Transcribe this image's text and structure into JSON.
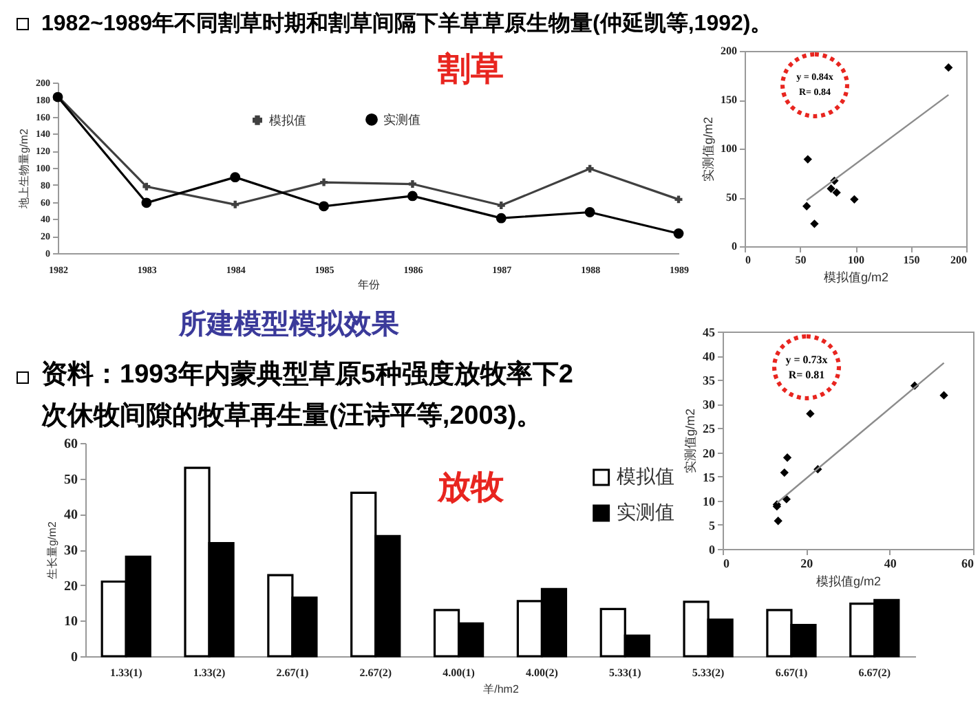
{
  "chart_data": [
    {
      "type": "line",
      "title": "1982~1989年不同割草时期和割草间隔下羊草草原生物量(仲延凯等,1992)。",
      "xlabel": "年份",
      "ylabel": "地上生物量g/m2",
      "categories": [
        "1982",
        "1983",
        "1984",
        "1985",
        "1986",
        "1987",
        "1988",
        "1989"
      ],
      "series": [
        {
          "name": "模拟值",
          "color": "#404040",
          "marker": "cross",
          "values": [
            184,
            78,
            57,
            83,
            81,
            56,
            99,
            63
          ]
        },
        {
          "name": "实测值",
          "color": "#000000",
          "marker": "circle",
          "values": [
            183,
            59,
            89,
            55,
            67,
            41,
            48,
            23
          ]
        }
      ],
      "ylim": [
        0,
        200
      ],
      "yticks": [
        0,
        20,
        40,
        60,
        80,
        100,
        120,
        140,
        160,
        180,
        200
      ],
      "grid": false,
      "legend": "top",
      "annotations": [
        "割草",
        "所建模型模拟效果"
      ]
    },
    {
      "type": "scatter",
      "xlabel": "模拟值g/m2",
      "ylabel": "实测值g/m2",
      "x": [
        184,
        78,
        57,
        83,
        81,
        56,
        99,
        63
      ],
      "series": [
        {
          "type": "scatter",
          "color": "#000000",
          "marker": "diamond",
          "values": [
            183,
            59,
            89,
            55,
            67,
            41,
            48,
            23
          ]
        },
        {
          "type": "line",
          "color": "#8c8c8c",
          "x": [
            56,
            184
          ],
          "values": [
            47,
            155
          ]
        }
      ],
      "xlim": [
        0,
        200
      ],
      "xticks": [
        0,
        50,
        100,
        150,
        200
      ],
      "ylim": [
        0,
        200
      ],
      "yticks": [
        0,
        50,
        100,
        150,
        200
      ],
      "grid": false,
      "annotations": [
        "y = 0.84x",
        "R= 0.84"
      ]
    },
    {
      "type": "scatter",
      "xlabel": "模拟值g/m2",
      "ylabel": "实测值g/m2",
      "x": [
        21,
        53,
        22.8,
        46,
        13,
        15.5,
        13.3,
        15.3,
        13,
        14.8
      ],
      "series": [
        {
          "type": "scatter",
          "color": "#000000",
          "marker": "diamond",
          "values": [
            28,
            31.8,
            16.5,
            33.8,
            9.2,
            18.9,
            5.8,
            10.3,
            8.8,
            15.8
          ]
        },
        {
          "type": "line",
          "color": "#8c8c8c",
          "x": [
            13,
            53
          ],
          "values": [
            9.5,
            38.5
          ]
        }
      ],
      "xlim": [
        0,
        60
      ],
      "xticks": [
        0,
        20,
        40,
        60
      ],
      "ylim": [
        0,
        45
      ],
      "yticks": [
        0,
        5,
        10,
        15,
        20,
        25,
        30,
        35,
        40,
        45
      ],
      "grid": false,
      "annotations": [
        "y = 0.73x",
        "R= 0.81"
      ]
    },
    {
      "type": "bar",
      "title": "资料：1993年内蒙典型草原5种强度放牧率下2次休牧间隙的牧草再生量(汪诗平等,2003)。",
      "xlabel": "羊/hm2",
      "ylabel": "生长量g/m2",
      "categories": [
        "1.33(1)",
        "1.33(2)",
        "2.67(1)",
        "2.67(2)",
        "4.00(1)",
        "4.00(2)",
        "5.33(1)",
        "5.33(2)",
        "6.67(1)",
        "6.67(2)"
      ],
      "series": [
        {
          "name": "模拟值",
          "color": "#ffffff",
          "values": [
            21,
            53,
            22.8,
            46,
            13,
            15.5,
            13.3,
            15.3,
            13,
            14.8
          ]
        },
        {
          "name": "实测值",
          "color": "#000000",
          "values": [
            28,
            31.8,
            16.5,
            33.8,
            9.2,
            18.9,
            5.8,
            10.3,
            8.8,
            15.8
          ]
        }
      ],
      "ylim": [
        0,
        60
      ],
      "yticks": [
        0,
        10,
        20,
        30,
        40,
        50,
        60
      ],
      "grid": false,
      "legend": "top right",
      "annotations": [
        "放牧"
      ]
    }
  ]
}
